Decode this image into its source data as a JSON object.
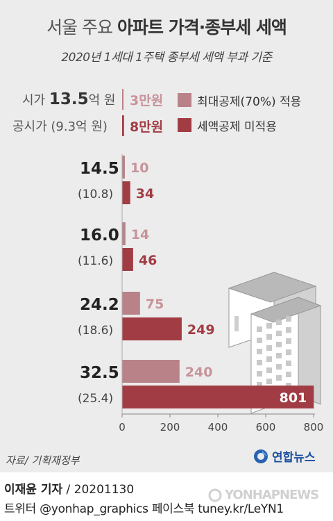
{
  "title": {
    "light": "서울 주요 ",
    "bold": "아파트 가격·종부세 세액"
  },
  "subtitle": "2020년 1세대 1주택 종부세 세액 부과 기준",
  "example": {
    "price_prefix": "시가 ",
    "price_num": "13.5",
    "price_suffix": "억 원",
    "official": "공시가 (9.3억 원)",
    "deduct_value": "3만원",
    "nodeduct_value": "8만원"
  },
  "legend": [
    {
      "label": "최대공제(70%) 적용",
      "color": "#b98289"
    },
    {
      "label": "세액공제 미적용",
      "color": "#a23c44"
    }
  ],
  "chart_data": {
    "type": "bar",
    "orientation": "horizontal",
    "categories": [
      {
        "price": "14.5",
        "official": "(10.8)"
      },
      {
        "price": "16.0",
        "official": "(11.6)"
      },
      {
        "price": "24.2",
        "official": "(18.6)"
      },
      {
        "price": "32.5",
        "official": "(25.4)"
      }
    ],
    "series": [
      {
        "name": "최대공제(70%) 적용",
        "values": [
          10,
          14,
          75,
          240
        ],
        "color": "#b98289"
      },
      {
        "name": "세액공제 미적용",
        "values": [
          34,
          46,
          249,
          801
        ],
        "color": "#a23c44"
      }
    ],
    "x_ticks": [
      0,
      200,
      400,
      600,
      800
    ],
    "xlim": [
      0,
      800
    ],
    "example_values": [
      3,
      8
    ]
  },
  "source": "자료/ 기획재정부",
  "logo": "연합뉴스",
  "reporter": {
    "name": "이재윤 기자",
    "date": " / 20201130"
  },
  "social": "트위터 @yonhap_graphics  페이스북 tuney.kr/LeYN1",
  "watermark": "YONHAPNEWS",
  "icons": {
    "building": "apartment-buildings-icon",
    "logo": "yonhap-logo-icon"
  }
}
